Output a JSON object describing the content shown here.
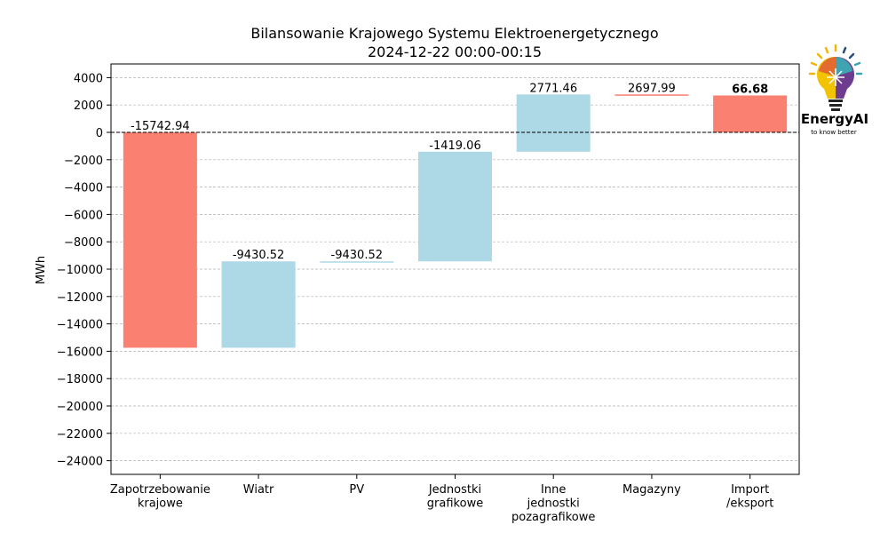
{
  "chart_data": {
    "type": "bar",
    "subtype": "waterfall",
    "title": "Bilansowanie Krajowego Systemu Elektroenergetycznego",
    "subtitle": "2024-12-22 00:00-00:15",
    "xlabel": "",
    "ylabel": "MWh",
    "ylim": [
      -25000,
      5000
    ],
    "yticks": [
      4000,
      2000,
      0,
      -2000,
      -4000,
      -6000,
      -8000,
      -10000,
      -12000,
      -14000,
      -16000,
      -18000,
      -20000,
      -22000,
      -24000
    ],
    "ytick_labels": [
      "4000",
      "2000",
      "0",
      "−2000",
      "−4000",
      "−6000",
      "−8000",
      "−10000",
      "−12000",
      "−14000",
      "−16000",
      "−18000",
      "−20000",
      "−22000",
      "−24000"
    ],
    "grid": true,
    "zero_line": "dashed",
    "categories": [
      "Zapotrzebowanie\nkrajowe",
      "Wiatr",
      "PV",
      "Jednostki\ngrafikowe",
      "Inne\njednostki\npozagrafikowe",
      "Magazyny",
      "Import\n/eksport"
    ],
    "bars": [
      {
        "start": 0,
        "end": -15742.94,
        "label": "-15742.94",
        "color": "#FA8072",
        "bold": false,
        "label_color": "#000000"
      },
      {
        "start": -15742.94,
        "end": -9430.52,
        "label": "-9430.52",
        "color": "#ADD8E6",
        "bold": false,
        "label_color": "#000000"
      },
      {
        "start": -9430.52,
        "end": -9430.52,
        "label": "-9430.52",
        "color": "#ADD8E6",
        "bold": false,
        "label_color": "#000000"
      },
      {
        "start": -9430.52,
        "end": -1419.06,
        "label": "-1419.06",
        "color": "#ADD8E6",
        "bold": false,
        "label_color": "#000000"
      },
      {
        "start": -1419.06,
        "end": 2771.46,
        "label": "2771.46",
        "color": "#ADD8E6",
        "bold": false,
        "label_color": "#000000"
      },
      {
        "start": 2771.46,
        "end": 2697.99,
        "label": "2697.99",
        "color": "#FA8072",
        "bold": false,
        "label_color": "#000000"
      },
      {
        "start": 0,
        "end": 2697.99,
        "label": "66.68",
        "color": "#FA8072",
        "bold": true,
        "label_color": "#E00000"
      }
    ]
  },
  "logo": {
    "brand": "EnergyAI",
    "tagline": "to know better"
  }
}
